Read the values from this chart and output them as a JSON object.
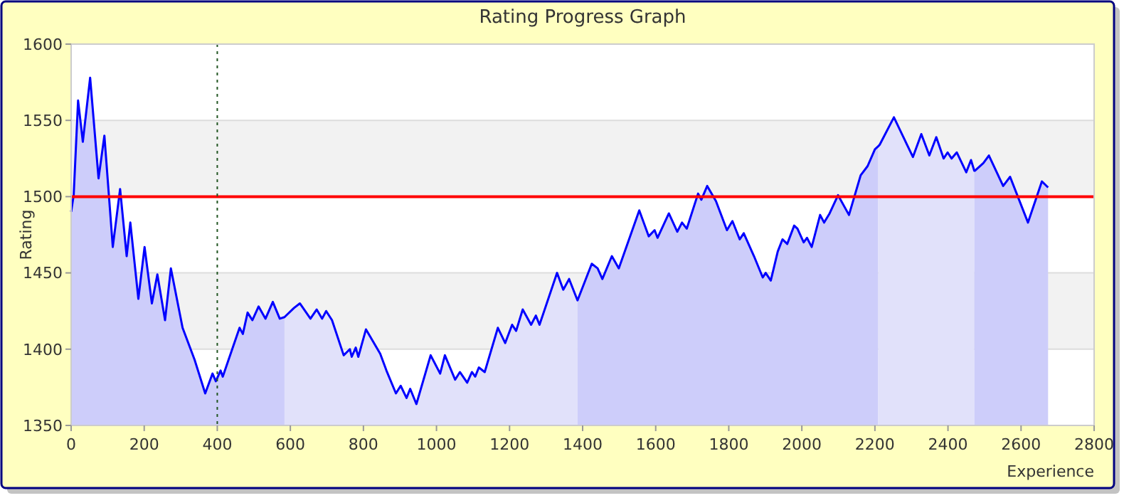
{
  "chart_data": {
    "type": "line",
    "title": "Rating Progress Graph",
    "xlabel": "Experience",
    "ylabel": "Rating",
    "xlim": [
      0,
      2800
    ],
    "xticks": [
      0,
      200,
      400,
      600,
      800,
      1000,
      1200,
      1400,
      1600,
      1800,
      2000,
      2200,
      2400,
      2600,
      2800
    ],
    "ylim": [
      1350,
      1600
    ],
    "yticks": [
      1350,
      1400,
      1450,
      1500,
      1550,
      1600
    ],
    "grid": "y",
    "bands": [
      {
        "axis": "y",
        "from": 1500,
        "to": 1550,
        "color": "#f2f2f2"
      },
      {
        "axis": "y",
        "from": 1400,
        "to": 1450,
        "color": "#f2f2f2"
      }
    ],
    "ref_lines": [
      {
        "axis": "y",
        "value": 1500,
        "color": "#ff0000",
        "line_style": "solid"
      },
      {
        "axis": "x",
        "value": 400,
        "color": "#225522",
        "line_style": "dotted"
      }
    ],
    "series": [
      {
        "type": "area",
        "color": "#cdcdfa",
        "x": [
          0,
          7,
          19,
          32,
          52,
          75,
          91,
          114,
          134,
          152,
          162,
          184,
          201,
          221,
          236,
          257,
          273,
          305,
          338,
          367,
          387,
          396,
          409,
          415,
          461,
          470,
          483,
          496,
          513,
          532,
          552,
          571,
          584
        ],
        "values": [
          1490,
          1501,
          1563,
          1536,
          1578,
          1512,
          1540,
          1467,
          1505,
          1461,
          1483,
          1433,
          1467,
          1430,
          1449,
          1419,
          1453,
          1414,
          1393,
          1371,
          1384,
          1379,
          1386,
          1382,
          1414,
          1410,
          1424,
          1419,
          1428,
          1420,
          1431,
          1420,
          1421
        ]
      },
      {
        "type": "area",
        "color": "#e1e1fa",
        "x": [
          584,
          610,
          626,
          655,
          672,
          687,
          698,
          714,
          746,
          763,
          768,
          779,
          786,
          807,
          846,
          863,
          889,
          902,
          918,
          928,
          945,
          984,
          1010,
          1023,
          1051,
          1064,
          1084,
          1097,
          1106,
          1116,
          1132,
          1168,
          1188,
          1207,
          1218,
          1236,
          1259,
          1272,
          1282,
          1330,
          1347,
          1363,
          1386
        ],
        "values": [
          1421,
          1427,
          1430,
          1420,
          1426,
          1420,
          1425,
          1419,
          1396,
          1400,
          1395,
          1401,
          1395,
          1413,
          1397,
          1386,
          1371,
          1376,
          1368,
          1374,
          1364,
          1396,
          1384,
          1396,
          1380,
          1385,
          1378,
          1385,
          1382,
          1388,
          1385,
          1414,
          1404,
          1416,
          1412,
          1426,
          1416,
          1422,
          1416,
          1450,
          1439,
          1446,
          1432
        ]
      },
      {
        "type": "area",
        "color": "#cdcdfa",
        "x": [
          1386,
          1425,
          1441,
          1454,
          1480,
          1499,
          1555,
          1581,
          1597,
          1605,
          1636,
          1659,
          1672,
          1685,
          1716,
          1725,
          1741,
          1765,
          1795,
          1810,
          1830,
          1841,
          1869,
          1893,
          1901,
          1915,
          1934,
          1947,
          1960,
          1979,
          1988,
          2005,
          2014,
          2027,
          2050,
          2061,
          2076,
          2099,
          2129,
          2161,
          2180,
          2200,
          2209
        ],
        "values": [
          1432,
          1456,
          1453,
          1446,
          1461,
          1453,
          1491,
          1474,
          1478,
          1473,
          1489,
          1477,
          1483,
          1479,
          1502,
          1498,
          1507,
          1497,
          1478,
          1484,
          1472,
          1476,
          1461,
          1447,
          1450,
          1445,
          1464,
          1472,
          1469,
          1481,
          1479,
          1470,
          1473,
          1467,
          1488,
          1483,
          1489,
          1501,
          1488,
          1514,
          1520,
          1531,
          1533
        ]
      },
      {
        "type": "area",
        "color": "#e1e1fa",
        "x": [
          2209,
          2213,
          2252,
          2304,
          2327,
          2349,
          2368,
          2388,
          2399,
          2410,
          2424,
          2450,
          2463,
          2472
        ],
        "values": [
          1533,
          1534,
          1552,
          1526,
          1541,
          1527,
          1539,
          1525,
          1529,
          1525,
          1529,
          1516,
          1524,
          1517
        ]
      },
      {
        "type": "area",
        "color": "#cdcdfa",
        "x": [
          2472,
          2474,
          2497,
          2512,
          2551,
          2570,
          2619,
          2657,
          2674
        ],
        "values": [
          1517,
          1517,
          1522,
          1527,
          1507,
          1513,
          1483,
          1510,
          1506
        ]
      },
      {
        "color": "#0000ff",
        "x": [
          0,
          7,
          19,
          32,
          52,
          75,
          91,
          114,
          134,
          152,
          162,
          184,
          201,
          221,
          236,
          257,
          273,
          305,
          338,
          367,
          387,
          396,
          409,
          415,
          461,
          470,
          483,
          496,
          513,
          532,
          552,
          571,
          584,
          610,
          626,
          655,
          672,
          687,
          698,
          714,
          746,
          763,
          768,
          779,
          786,
          807,
          846,
          863,
          889,
          902,
          918,
          928,
          945,
          984,
          1010,
          1023,
          1051,
          1064,
          1084,
          1097,
          1106,
          1116,
          1132,
          1168,
          1188,
          1207,
          1218,
          1236,
          1259,
          1272,
          1282,
          1330,
          1347,
          1363,
          1386,
          1425,
          1441,
          1454,
          1480,
          1499,
          1555,
          1581,
          1597,
          1605,
          1636,
          1659,
          1672,
          1685,
          1716,
          1725,
          1741,
          1765,
          1795,
          1810,
          1830,
          1841,
          1869,
          1893,
          1901,
          1915,
          1934,
          1947,
          1960,
          1979,
          1988,
          2005,
          2014,
          2027,
          2050,
          2061,
          2076,
          2099,
          2129,
          2161,
          2180,
          2200,
          2209,
          2213,
          2252,
          2304,
          2327,
          2349,
          2368,
          2388,
          2399,
          2410,
          2424,
          2450,
          2463,
          2472,
          2474,
          2497,
          2512,
          2551,
          2570,
          2619,
          2657,
          2674
        ],
        "values": [
          1490,
          1501,
          1563,
          1536,
          1578,
          1512,
          1540,
          1467,
          1505,
          1461,
          1483,
          1433,
          1467,
          1430,
          1449,
          1419,
          1453,
          1414,
          1393,
          1371,
          1384,
          1379,
          1386,
          1382,
          1414,
          1410,
          1424,
          1419,
          1428,
          1420,
          1431,
          1420,
          1421,
          1427,
          1430,
          1420,
          1426,
          1420,
          1425,
          1419,
          1396,
          1400,
          1395,
          1401,
          1395,
          1413,
          1397,
          1386,
          1371,
          1376,
          1368,
          1374,
          1364,
          1396,
          1384,
          1396,
          1380,
          1385,
          1378,
          1385,
          1382,
          1388,
          1385,
          1414,
          1404,
          1416,
          1412,
          1426,
          1416,
          1422,
          1416,
          1450,
          1439,
          1446,
          1432,
          1456,
          1453,
          1446,
          1461,
          1453,
          1491,
          1474,
          1478,
          1473,
          1489,
          1477,
          1483,
          1479,
          1502,
          1498,
          1507,
          1497,
          1478,
          1484,
          1472,
          1476,
          1461,
          1447,
          1450,
          1445,
          1464,
          1472,
          1469,
          1481,
          1479,
          1470,
          1473,
          1467,
          1488,
          1483,
          1489,
          1501,
          1488,
          1514,
          1520,
          1531,
          1533,
          1534,
          1552,
          1526,
          1541,
          1527,
          1539,
          1525,
          1529,
          1525,
          1529,
          1516,
          1524,
          1517,
          1517,
          1522,
          1527,
          1507,
          1513,
          1483,
          1510,
          1506
        ]
      }
    ]
  }
}
